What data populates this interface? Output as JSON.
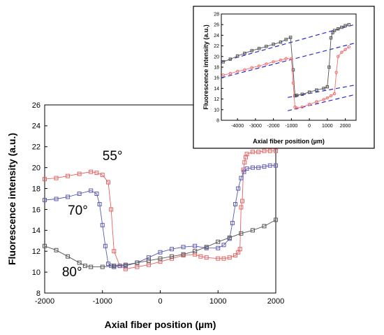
{
  "chart_data": [
    {
      "type": "scatter",
      "role": "main",
      "xlabel": "Axial fiber position (µm)",
      "ylabel": "Fluorescence intensity (a.u.)",
      "xlim": [
        -2000,
        2000
      ],
      "ylim": [
        8,
        26
      ],
      "xticks": [
        -2000,
        -1000,
        0,
        1000,
        2000
      ],
      "xtick_labels": [
        "-2000",
        "-1000",
        "0",
        "1000",
        "2000"
      ],
      "yticks": [
        8,
        10,
        12,
        14,
        16,
        18,
        20,
        22,
        24,
        26
      ],
      "ytick_labels": [
        "8",
        "10",
        "12",
        "14",
        "16",
        "18",
        "20",
        "22",
        "24",
        "26"
      ],
      "grid": false,
      "marker": "open-square",
      "series": [
        {
          "name": "55°",
          "color": "#e86060",
          "x": [
            -2000,
            -1800,
            -1600,
            -1400,
            -1200,
            -1100,
            -1000,
            -900,
            -850,
            -800,
            -700,
            -600,
            -400,
            -200,
            0,
            200,
            400,
            600,
            700,
            800,
            1000,
            1100,
            1200,
            1300,
            1350,
            1380,
            1400,
            1420,
            1440,
            1460,
            1480,
            1500,
            1600,
            1700,
            1800,
            1900,
            2000
          ],
          "y": [
            18.9,
            19.0,
            19.2,
            19.4,
            19.6,
            19.5,
            19.3,
            18.6,
            16.0,
            12.0,
            10.6,
            10.3,
            10.5,
            10.7,
            11.0,
            11.3,
            11.6,
            11.7,
            11.5,
            11.4,
            11.3,
            11.3,
            11.4,
            11.6,
            11.9,
            12.2,
            16.2,
            16.8,
            19.8,
            20.5,
            21.0,
            21.3,
            21.5,
            21.5,
            21.6,
            21.6,
            21.6
          ]
        },
        {
          "name": "70°",
          "color": "#5a5ab4",
          "x": [
            -2000,
            -1800,
            -1600,
            -1400,
            -1200,
            -1100,
            -1050,
            -1000,
            -950,
            -900,
            -850,
            -800,
            -700,
            -600,
            -400,
            -200,
            0,
            200,
            400,
            600,
            800,
            1000,
            1100,
            1200,
            1250,
            1300,
            1350,
            1400,
            1450,
            1500,
            1600,
            1700,
            1800,
            1900,
            2000
          ],
          "y": [
            16.9,
            17.0,
            17.2,
            17.5,
            17.8,
            17.5,
            16.5,
            14.5,
            12.5,
            10.8,
            10.6,
            10.5,
            10.6,
            10.6,
            10.9,
            11.4,
            11.9,
            12.2,
            12.4,
            12.5,
            12.3,
            12.3,
            12.6,
            13.2,
            14.7,
            16.5,
            18.0,
            19.0,
            19.6,
            19.9,
            20.0,
            20.0,
            20.1,
            20.2,
            20.2
          ]
        },
        {
          "name": "80°",
          "color": "#555555",
          "x": [
            -2000,
            -1800,
            -1600,
            -1400,
            -1300,
            -1200,
            -1000,
            -800,
            -600,
            -400,
            -200,
            0,
            200,
            400,
            600,
            800,
            1000,
            1200,
            1400,
            1600,
            1800,
            2000
          ],
          "y": [
            12.5,
            12.1,
            11.5,
            10.9,
            10.6,
            10.5,
            10.5,
            10.6,
            10.7,
            10.9,
            11.1,
            11.3,
            11.5,
            11.7,
            12.0,
            12.4,
            12.9,
            13.3,
            13.7,
            14.0,
            14.4,
            15.0
          ]
        }
      ],
      "annotations": [
        {
          "text": "55°",
          "x": -1000,
          "y": 20.7,
          "series": "55°"
        },
        {
          "text": "70°",
          "x": -1600,
          "y": 15.5,
          "series": "70°"
        },
        {
          "text": "80°",
          "x": -1700,
          "y": 9.6,
          "series": "80°"
        }
      ]
    },
    {
      "type": "scatter",
      "role": "inset",
      "xlabel": "Axial fiber position (µm)",
      "ylabel": "Fluorescence intensity (a.u.)",
      "xlim": [
        -4900,
        2600
      ],
      "ylim": [
        8,
        28
      ],
      "xticks": [
        -4000,
        -3000,
        -2000,
        -1000,
        0,
        1000,
        2000
      ],
      "xtick_labels": [
        "-4000",
        "-3000",
        "-2000",
        "-1000",
        "0",
        "1000",
        "2000"
      ],
      "yticks": [
        8,
        10,
        12,
        14,
        16,
        18,
        20,
        22,
        24,
        26,
        28
      ],
      "ytick_labels": [
        "8",
        "10",
        "12",
        "14",
        "16",
        "18",
        "20",
        "22",
        "24",
        "26",
        "28"
      ],
      "grid": false,
      "series": [
        {
          "marker": "open-square",
          "color": "#555555",
          "x": [
            -4800,
            -4400,
            -4000,
            -3600,
            -3200,
            -2800,
            -2400,
            -2000,
            -1600,
            -1300,
            -1050,
            -900,
            -800,
            -700,
            -400,
            0,
            400,
            800,
            1000,
            1100,
            1200,
            1300,
            1400,
            1600,
            1800,
            2000,
            2200
          ],
          "y": [
            19.0,
            19.5,
            20.1,
            20.6,
            21.1,
            21.5,
            21.9,
            22.3,
            22.7,
            23.2,
            23.6,
            17.5,
            12.6,
            12.7,
            12.9,
            13.3,
            13.7,
            14.0,
            14.3,
            18.0,
            23.5,
            24.5,
            24.9,
            25.2,
            25.5,
            25.8,
            26.0
          ]
        },
        {
          "marker": "open-circle",
          "color": "#f07070",
          "x": [
            -4800,
            -4400,
            -4000,
            -3600,
            -3200,
            -2800,
            -2400,
            -2000,
            -1600,
            -1300,
            -1000,
            -900,
            -800,
            -700,
            -400,
            0,
            400,
            800,
            1000,
            1200,
            1400,
            1500,
            1600,
            1800,
            2000,
            2200
          ],
          "y": [
            16.5,
            16.8,
            17.2,
            17.5,
            17.9,
            18.2,
            18.6,
            19.0,
            19.3,
            19.6,
            19.6,
            15.0,
            10.5,
            10.3,
            10.5,
            11.0,
            11.5,
            11.9,
            12.2,
            12.6,
            13.0,
            17.0,
            20.0,
            20.8,
            21.3,
            21.8
          ]
        }
      ],
      "fit_lines": [
        {
          "color": "#2a2acc",
          "style": "dashed",
          "x": [
            -4900,
            2500
          ],
          "y": [
            19.0,
            26.0
          ]
        },
        {
          "color": "#2a2acc",
          "style": "dashed",
          "x": [
            -4900,
            2500
          ],
          "y": [
            16.0,
            22.5
          ]
        },
        {
          "color": "#2a2acc",
          "style": "dashed",
          "x": [
            -1200,
            2500
          ],
          "y": [
            12.3,
            14.6
          ]
        },
        {
          "color": "#2a2acc",
          "style": "dashed",
          "x": [
            -1200,
            2500
          ],
          "y": [
            9.8,
            12.8
          ]
        }
      ]
    }
  ]
}
